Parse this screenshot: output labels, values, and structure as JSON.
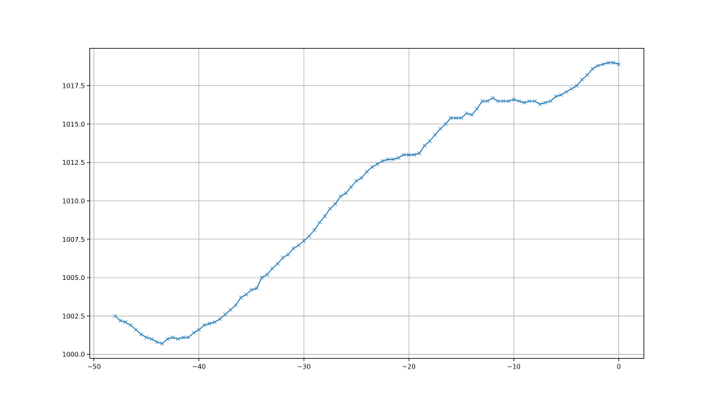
{
  "chart_data": {
    "type": "line",
    "title": "",
    "xlabel": "",
    "ylabel": "",
    "xlim": [
      -50.4,
      2.4
    ],
    "ylim": [
      999.74,
      1019.94
    ],
    "xticks": [
      -50,
      -40,
      -30,
      -20,
      -10,
      0
    ],
    "xtick_labels": [
      "−50",
      "−40",
      "−30",
      "−20",
      "−10",
      "0"
    ],
    "yticks": [
      1000.0,
      1002.5,
      1005.0,
      1007.5,
      1010.0,
      1012.5,
      1015.0,
      1017.5
    ],
    "ytick_labels": [
      "1000.0",
      "1002.5",
      "1005.0",
      "1007.5",
      "1010.0",
      "1012.5",
      "1015.0",
      "1017.5"
    ],
    "grid": true,
    "marker": "x",
    "color": "#1f77b4",
    "x_start": -48,
    "x_step": 0.5,
    "values": [
      1002.5,
      1002.2,
      1002.1,
      1001.9,
      1001.6,
      1001.3,
      1001.1,
      1001.0,
      1000.8,
      1000.7,
      1001.0,
      1001.1,
      1001.0,
      1001.1,
      1001.1,
      1001.4,
      1001.6,
      1001.9,
      1002.0,
      1002.1,
      1002.3,
      1002.6,
      1002.9,
      1003.2,
      1003.7,
      1003.9,
      1004.2,
      1004.3,
      1005.0,
      1005.2,
      1005.6,
      1005.9,
      1006.3,
      1006.5,
      1006.9,
      1007.1,
      1007.4,
      1007.7,
      1008.1,
      1008.6,
      1009.0,
      1009.5,
      1009.8,
      1010.3,
      1010.5,
      1010.9,
      1011.3,
      1011.5,
      1011.9,
      1012.2,
      1012.4,
      1012.6,
      1012.7,
      1012.7,
      1012.8,
      1013.0,
      1013.0,
      1013.0,
      1013.1,
      1013.6,
      1013.9,
      1014.3,
      1014.7,
      1015.0,
      1015.4,
      1015.4,
      1015.4,
      1015.7,
      1015.6,
      1016.0,
      1016.5,
      1016.5,
      1016.7,
      1016.5,
      1016.5,
      1016.5,
      1016.6,
      1016.5,
      1016.4,
      1016.5,
      1016.5,
      1016.3,
      1016.4,
      1016.5,
      1016.8,
      1016.9,
      1017.1,
      1017.3,
      1017.5,
      1017.9,
      1018.2,
      1018.6,
      1018.8,
      1018.9,
      1019.0,
      1019.0,
      1018.9
    ]
  }
}
